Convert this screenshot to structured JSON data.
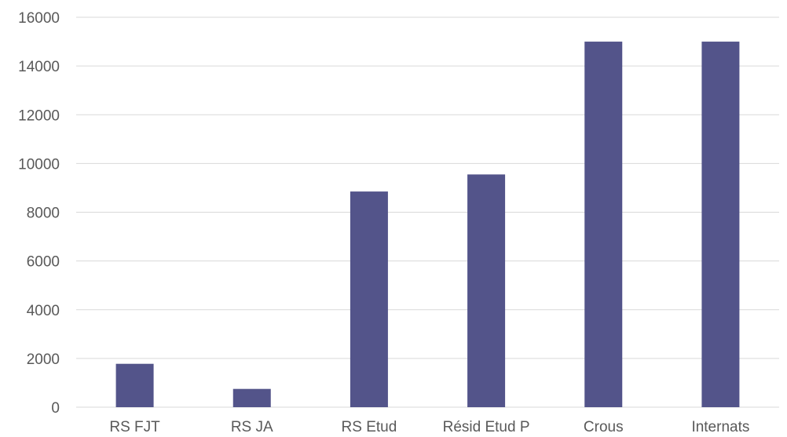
{
  "chart_data": {
    "type": "bar",
    "categories": [
      "RS FJT",
      "RS JA",
      "RS Etud",
      "Résid Etud P",
      "Crous",
      "Internats"
    ],
    "values": [
      1780,
      750,
      8850,
      9550,
      15000,
      15000
    ],
    "ylim": [
      0,
      16000
    ],
    "yticks": [
      0,
      2000,
      4000,
      6000,
      8000,
      10000,
      12000,
      14000,
      16000
    ],
    "grid": true,
    "bar_color": "#53548a",
    "title": "",
    "xlabel": "",
    "ylabel": ""
  }
}
